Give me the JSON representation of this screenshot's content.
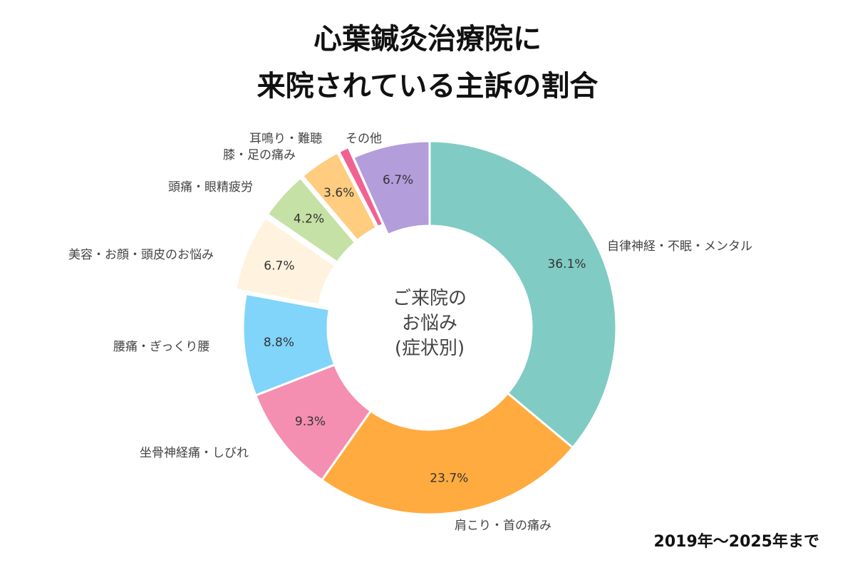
{
  "title_line1": "心葉鍼灸治療院に",
  "title_line2": "来院されている主訴の割合",
  "center_label": [
    "ご来院の",
    "お悩み",
    "(症状別)"
  ],
  "period_note": "2019年〜2025年まで",
  "chart_data": {
    "type": "pie",
    "donut": true,
    "start": "top",
    "direction": "clockwise",
    "slices": [
      {
        "label": "自律神経・不眠・メンタル",
        "value": 36.1,
        "value_label": "36.1%",
        "color": "#80cbc4",
        "exploded": false
      },
      {
        "label": "肩こり・首の痛み",
        "value": 23.7,
        "value_label": "23.7%",
        "color": "#ffab40",
        "exploded": false
      },
      {
        "label": "坐骨神経痛・しびれ",
        "value": 9.3,
        "value_label": "9.3%",
        "color": "#f48fb1",
        "exploded": false
      },
      {
        "label": "腰痛・ぎっくり腰",
        "value": 8.8,
        "value_label": "8.8%",
        "color": "#81d4fa",
        "exploded": false
      },
      {
        "label": "美容・お顔・頭皮のお悩み",
        "value": 6.7,
        "value_label": "6.7%",
        "color": "#fff3e0",
        "exploded": true
      },
      {
        "label": "頭痛・眼精疲労",
        "value": 4.2,
        "value_label": "4.2%",
        "color": "#c5e1a5",
        "exploded": true
      },
      {
        "label": "膝・足の痛み",
        "value": 3.6,
        "value_label": "3.6%",
        "color": "#ffcc80",
        "exploded": true
      },
      {
        "label": "耳鳴り・難聴",
        "value": 0.9,
        "value_label": "",
        "color": "#f06292",
        "exploded": true
      },
      {
        "label": "その他",
        "value": 6.7,
        "value_label": "6.7%",
        "color": "#b39ddb",
        "exploded": false
      }
    ]
  }
}
